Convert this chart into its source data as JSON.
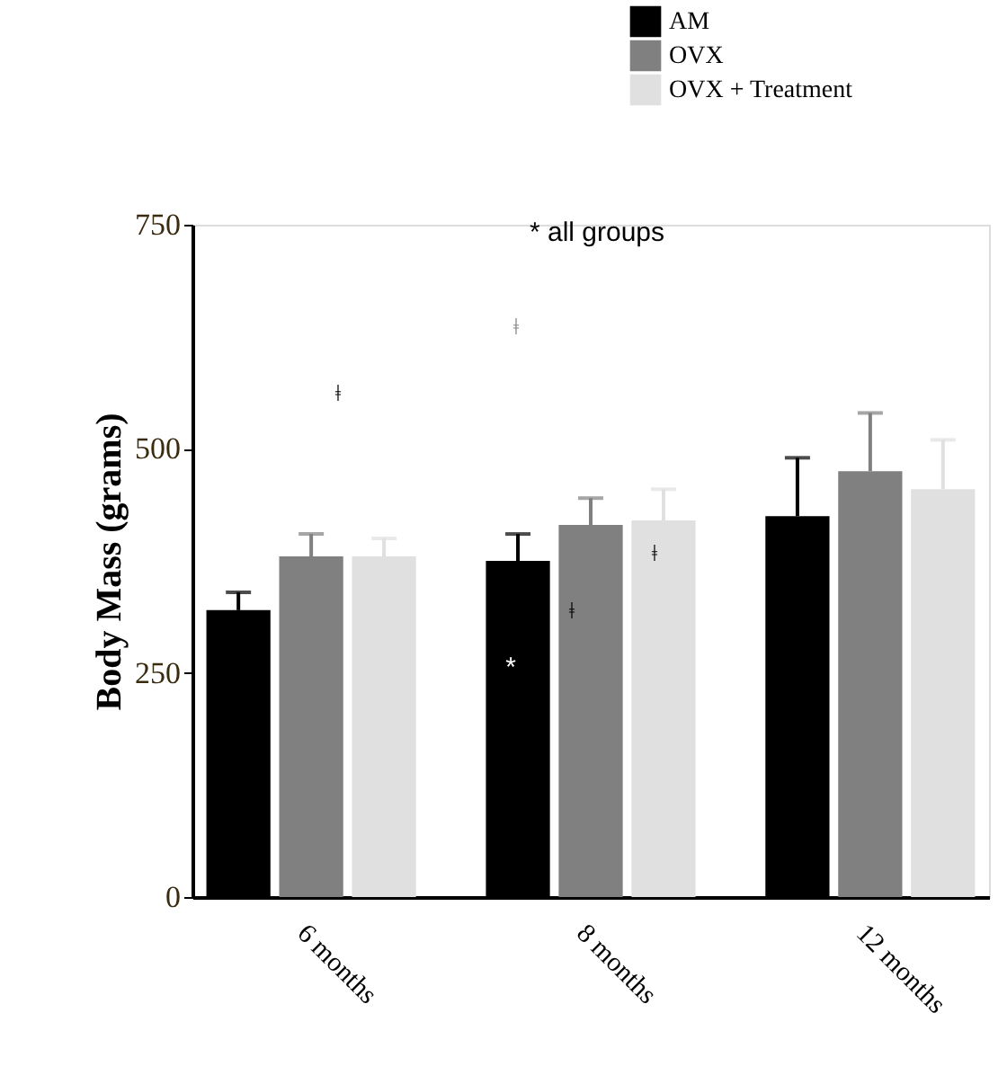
{
  "chart_data": {
    "type": "bar",
    "ylabel": "Body Mass (grams)",
    "categories": [
      "6 months",
      "8 months",
      "12 months"
    ],
    "series": [
      {
        "name": "AM",
        "color": "#000000",
        "values": [
          320,
          375,
          425
        ],
        "errors": [
          [
            320,
            340
          ],
          [
            375,
            405
          ],
          [
            425,
            490
          ]
        ]
      },
      {
        "name": "OVX",
        "color": "#808080",
        "values": [
          380,
          415,
          475
        ],
        "errors": [
          [
            380,
            405
          ],
          [
            415,
            445
          ],
          [
            475,
            540
          ]
        ]
      },
      {
        "name": "OVX + Treatment",
        "color": "#e0e0e0",
        "values": [
          380,
          420,
          455
        ],
        "errors": [
          [
            380,
            400
          ],
          [
            420,
            455
          ],
          [
            455,
            510
          ]
        ]
      }
    ],
    "ylim": [
      0,
      750
    ],
    "yticks": [
      0,
      250,
      500,
      750
    ],
    "grid": false,
    "legend": "top right",
    "annotations": [
      "* all groups",
      "ǂ",
      "ǂ",
      "ǂ",
      "ǂ",
      "*"
    ]
  }
}
